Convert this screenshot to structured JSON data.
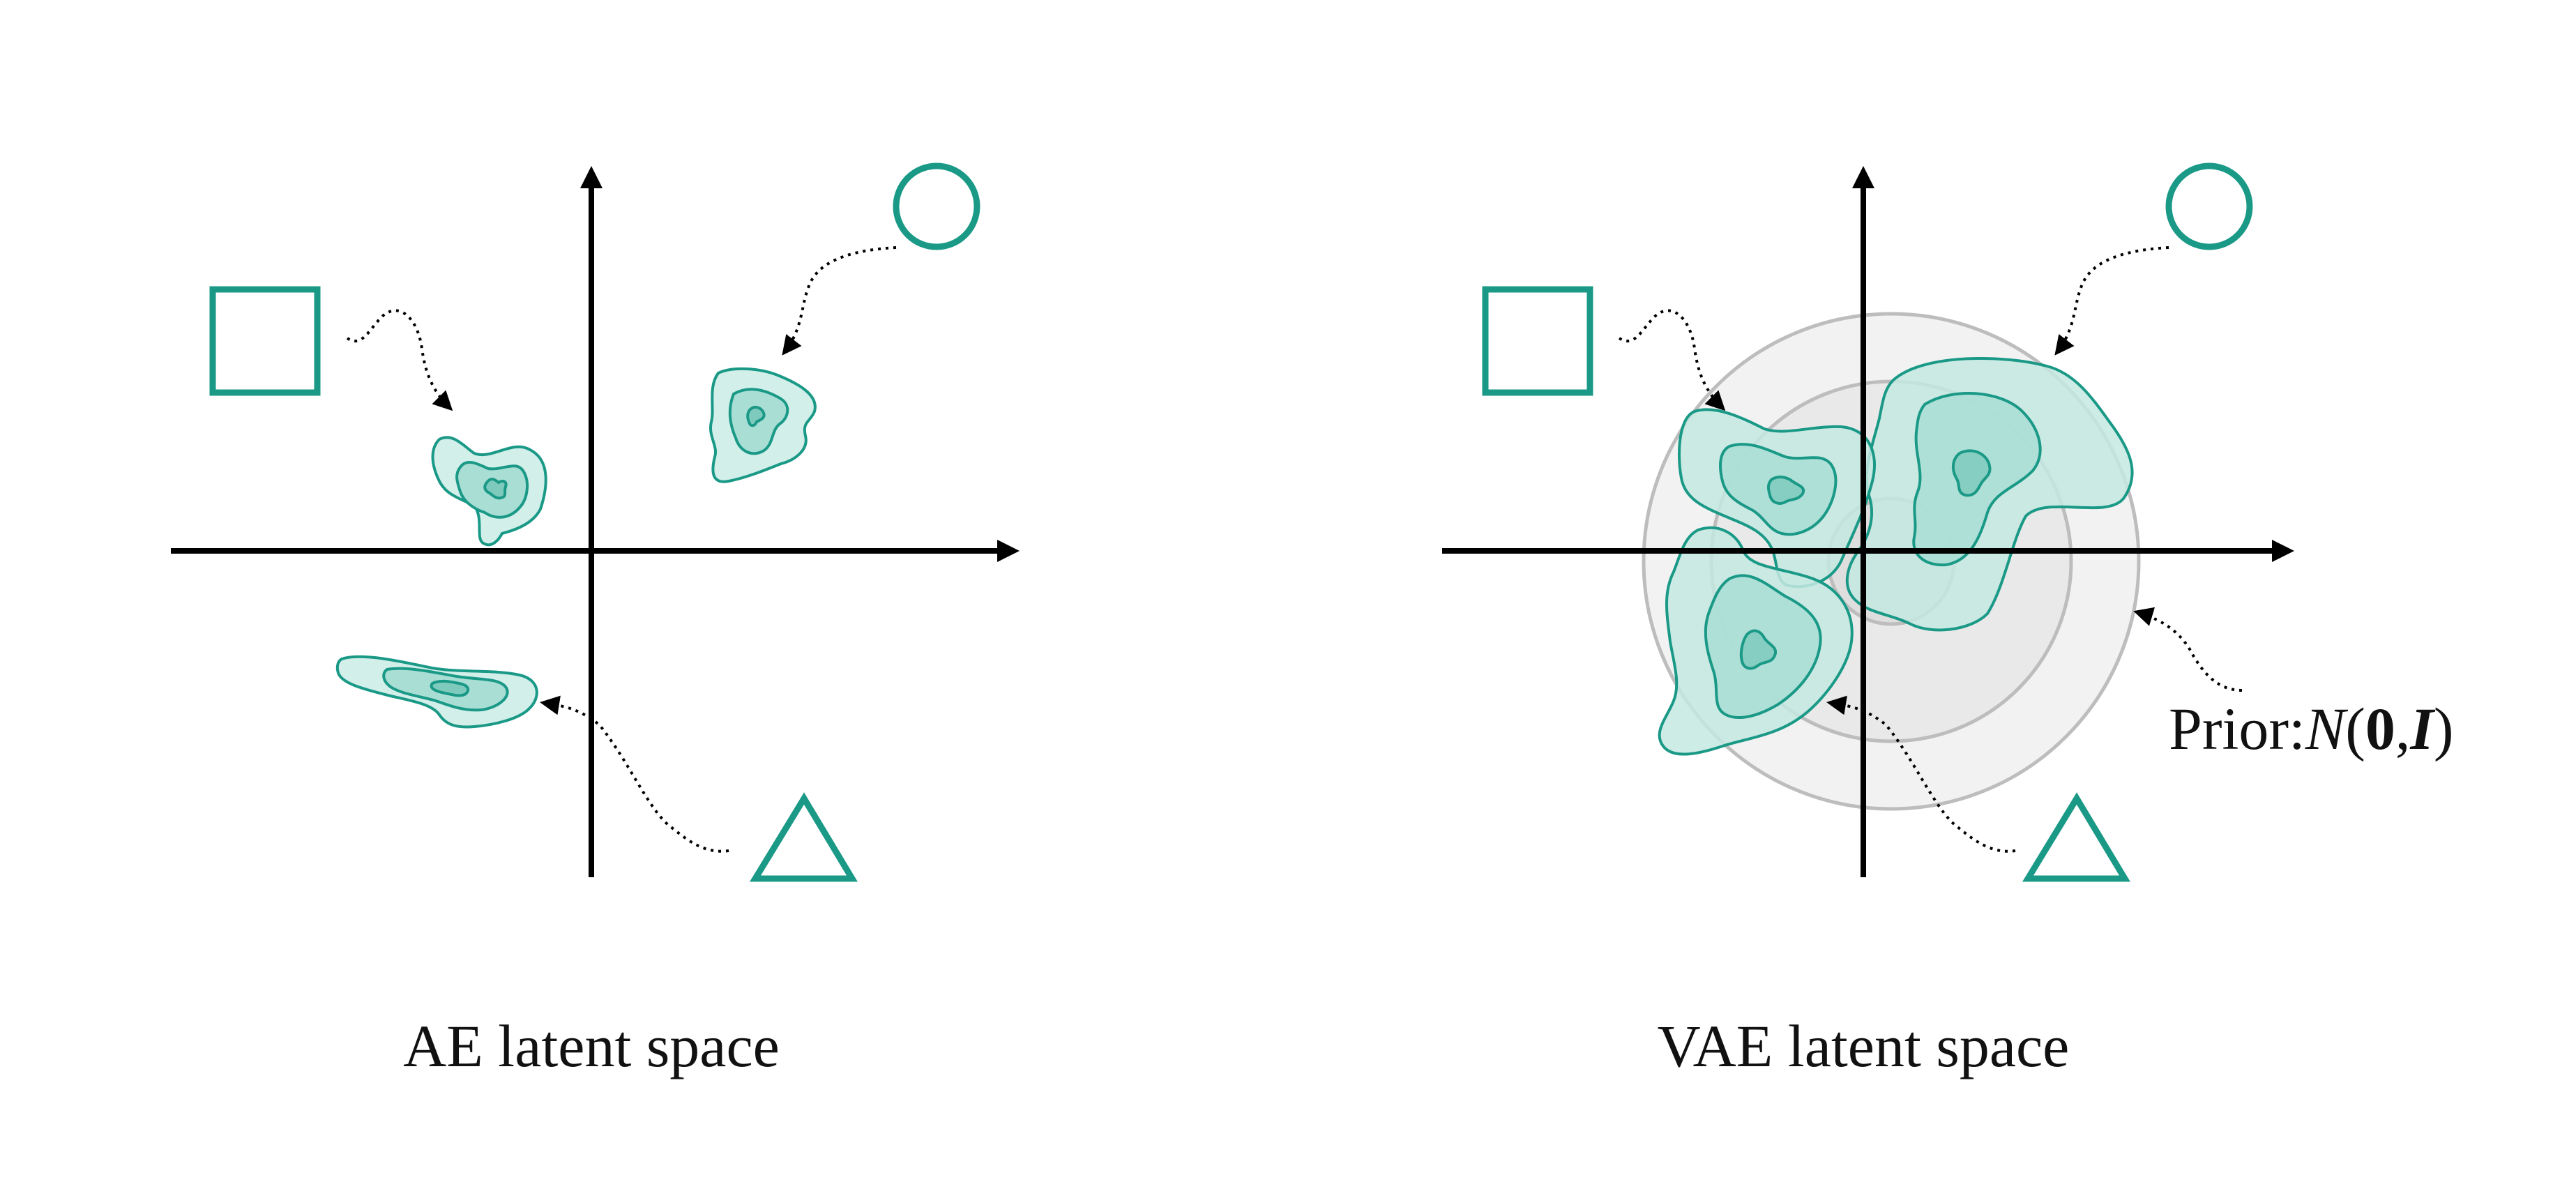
{
  "panels": {
    "ae": {
      "caption": "AE latent space"
    },
    "vae": {
      "caption": "VAE latent space"
    }
  },
  "prior": {
    "prefix": "Prior:",
    "dist": "N",
    "open": "(",
    "mean": "0",
    "comma": ",",
    "cov": "I",
    "close": ")"
  },
  "colors": {
    "teal_stroke": "#1a9987",
    "teal_fill_light": "#d2efea",
    "teal_fill_mid": "#a9ded5",
    "teal_fill_dark": "#7ecabd",
    "prior_ring": "#bdbdbd",
    "axis": "#000000"
  },
  "icons": [
    "square-shape-icon",
    "circle-shape-icon",
    "triangle-shape-icon"
  ]
}
